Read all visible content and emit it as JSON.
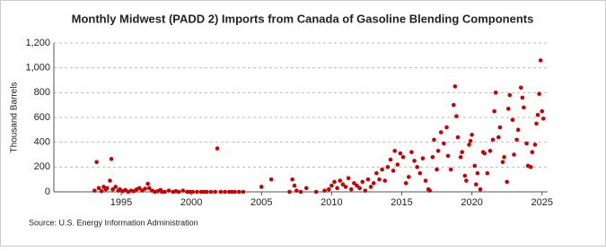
{
  "chart_data": {
    "type": "scatter",
    "title": "Monthly Midwest (PADD 2) Imports from Canada of Gasoline Blending Components",
    "y_label": "Thousand Barrels",
    "source": "Source: U.S. Energy Information Administration",
    "color": "#cc0000",
    "grid": true,
    "xlim": [
      1990.2,
      2025.4
    ],
    "xticks": [
      1995,
      2000,
      2005,
      2010,
      2015,
      2020,
      2025
    ],
    "ylim": [
      0,
      1200
    ],
    "yticks": [
      0,
      200,
      400,
      600,
      800,
      {
        "value": 1000,
        "label": "1,000"
      },
      {
        "value": 1200,
        "label": "1,200"
      }
    ],
    "x": [
      1993.1,
      1993.25,
      1993.4,
      1993.6,
      1993.75,
      1993.9,
      1994.0,
      1994.2,
      1994.3,
      1994.4,
      1994.6,
      1994.8,
      1994.9,
      1995.1,
      1995.3,
      1995.5,
      1995.7,
      1995.9,
      1996.1,
      1996.3,
      1996.5,
      1996.7,
      1996.9,
      1997.0,
      1997.2,
      1997.4,
      1997.6,
      1997.8,
      1997.9,
      1998.1,
      1998.4,
      1998.7,
      1998.9,
      1999.1,
      1999.4,
      1999.7,
      1999.9,
      2000.1,
      2000.4,
      2000.7,
      2000.9,
      2001.1,
      2001.4,
      2001.7,
      2001.85,
      2002.1,
      2002.4,
      2002.7,
      2002.9,
      2003.1,
      2003.4,
      2003.7,
      2005.0,
      2005.7,
      2007.0,
      2007.2,
      2007.35,
      2007.5,
      2007.8,
      2008.2,
      2008.9,
      2009.5,
      2009.8,
      2010.0,
      2010.2,
      2010.4,
      2010.6,
      2010.8,
      2011.0,
      2011.2,
      2011.4,
      2011.6,
      2011.8,
      2012.0,
      2012.2,
      2012.4,
      2012.6,
      2012.8,
      2013.0,
      2013.2,
      2013.4,
      2013.6,
      2013.8,
      2014.0,
      2014.2,
      2014.4,
      2014.5,
      2014.7,
      2014.9,
      2015.1,
      2015.3,
      2015.5,
      2015.7,
      2015.9,
      2016.1,
      2016.3,
      2016.5,
      2016.7,
      2016.9,
      2017.0,
      2017.2,
      2017.3,
      2017.5,
      2017.6,
      2017.8,
      2018.0,
      2018.2,
      2018.3,
      2018.5,
      2018.7,
      2018.8,
      2018.9,
      2019.0,
      2019.2,
      2019.3,
      2019.5,
      2019.6,
      2019.8,
      2019.9,
      2020.0,
      2020.2,
      2020.3,
      2020.4,
      2020.6,
      2020.8,
      2020.9,
      2021.1,
      2021.3,
      2021.5,
      2021.6,
      2021.7,
      2021.9,
      2022.0,
      2022.2,
      2022.3,
      2022.5,
      2022.6,
      2022.7,
      2022.9,
      2023.0,
      2023.2,
      2023.3,
      2023.5,
      2023.6,
      2023.7,
      2023.9,
      2024.0,
      2024.2,
      2024.3,
      2024.5,
      2024.6,
      2024.7,
      2024.8,
      2024.9,
      2025.0,
      2025.1
    ],
    "values": [
      10,
      240,
      30,
      5,
      40,
      20,
      30,
      90,
      265,
      20,
      40,
      10,
      20,
      5,
      15,
      0,
      10,
      5,
      20,
      30,
      10,
      25,
      65,
      30,
      10,
      0,
      5,
      15,
      0,
      0,
      10,
      0,
      5,
      0,
      10,
      0,
      0,
      0,
      0,
      0,
      0,
      0,
      0,
      0,
      350,
      0,
      0,
      0,
      0,
      0,
      0,
      0,
      40,
      100,
      0,
      100,
      50,
      10,
      0,
      30,
      0,
      10,
      20,
      50,
      80,
      30,
      90,
      60,
      40,
      110,
      20,
      70,
      50,
      30,
      80,
      10,
      100,
      40,
      70,
      150,
      100,
      180,
      90,
      200,
      260,
      170,
      330,
      220,
      310,
      280,
      70,
      120,
      320,
      250,
      200,
      150,
      270,
      90,
      20,
      10,
      280,
      420,
      180,
      330,
      480,
      390,
      520,
      290,
      180,
      700,
      850,
      610,
      440,
      280,
      320,
      130,
      90,
      380,
      410,
      460,
      210,
      60,
      150,
      20,
      320,
      310,
      150,
      330,
      420,
      650,
      800,
      440,
      520,
      240,
      280,
      80,
      670,
      780,
      580,
      300,
      420,
      500,
      840,
      760,
      680,
      390,
      210,
      200,
      320,
      380,
      550,
      620,
      790,
      1060,
      650,
      590
    ]
  }
}
